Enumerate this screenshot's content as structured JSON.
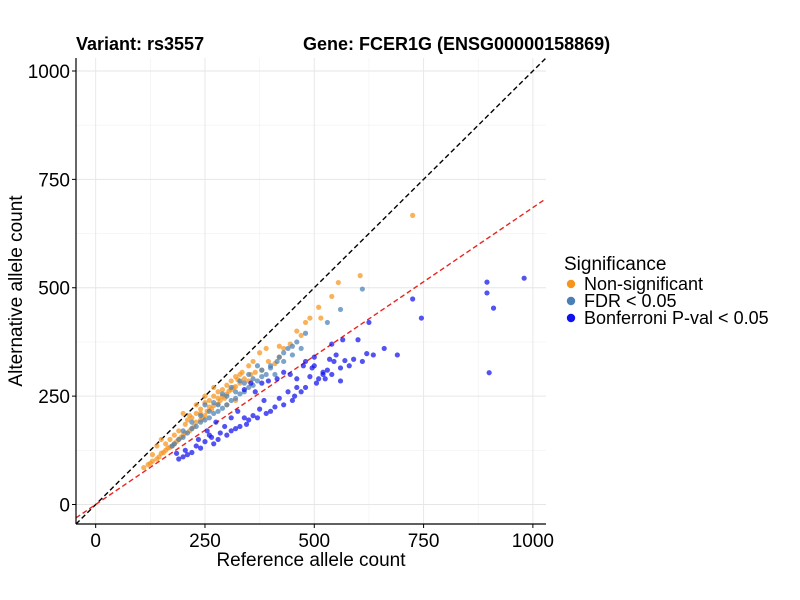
{
  "chart_data": {
    "type": "scatter",
    "title_left": "Variant: rs3557",
    "title_right": "Gene: FCER1G (ENSG00000158869)",
    "xlabel": "Reference allele count",
    "ylabel": "Alternative allele count",
    "xlim": [
      -45,
      1030
    ],
    "ylim": [
      -45,
      1030
    ],
    "xticks": [
      0,
      250,
      500,
      750,
      1000
    ],
    "yticks": [
      0,
      250,
      500,
      750,
      1000
    ],
    "grid": true,
    "legend": {
      "title": "Significance",
      "position": "right",
      "entries": [
        {
          "label": "Non-significant",
          "color": "#f7941d"
        },
        {
          "label": "FDR < 0.05",
          "color": "#4a7fb5"
        },
        {
          "label": "Bonferroni P-val < 0.05",
          "color": "#1010f0"
        }
      ]
    },
    "reference_lines": [
      {
        "name": "identity",
        "slope": 1.0,
        "intercept": 0,
        "color": "#000000",
        "dash": true
      },
      {
        "name": "expected-ratio",
        "slope": 0.685,
        "intercept": 0,
        "color": "#e8251f",
        "dash": true
      }
    ],
    "series": [
      {
        "name": "Non-significant",
        "color": "#f7941d",
        "points": [
          [
            725,
            667
          ],
          [
            605,
            528
          ],
          [
            555,
            512
          ],
          [
            510,
            455
          ],
          [
            490,
            430
          ],
          [
            460,
            400
          ],
          [
            445,
            370
          ],
          [
            430,
            360
          ],
          [
            420,
            340
          ],
          [
            410,
            325
          ],
          [
            395,
            330
          ],
          [
            380,
            310
          ],
          [
            365,
            305
          ],
          [
            355,
            300
          ],
          [
            340,
            290
          ],
          [
            330,
            280
          ],
          [
            320,
            272
          ],
          [
            310,
            265
          ],
          [
            300,
            255
          ],
          [
            295,
            245
          ],
          [
            285,
            240
          ],
          [
            280,
            232
          ],
          [
            270,
            228
          ],
          [
            265,
            220
          ],
          [
            255,
            215
          ],
          [
            250,
            205
          ],
          [
            245,
            200
          ],
          [
            240,
            195
          ],
          [
            230,
            190
          ],
          [
            225,
            180
          ],
          [
            220,
            175
          ],
          [
            215,
            170
          ],
          [
            205,
            165
          ],
          [
            200,
            160
          ],
          [
            195,
            155
          ],
          [
            190,
            150
          ],
          [
            185,
            145
          ],
          [
            180,
            140
          ],
          [
            175,
            135
          ],
          [
            170,
            132
          ],
          [
            165,
            130
          ],
          [
            160,
            125
          ],
          [
            155,
            120
          ],
          [
            150,
            118
          ],
          [
            145,
            110
          ],
          [
            140,
            105
          ],
          [
            130,
            100
          ],
          [
            125,
            95
          ],
          [
            120,
            92
          ],
          [
            110,
            85
          ],
          [
            200,
            210
          ],
          [
            210,
            195
          ],
          [
            220,
            200
          ],
          [
            230,
            210
          ],
          [
            240,
            220
          ],
          [
            250,
            235
          ],
          [
            260,
            240
          ],
          [
            270,
            250
          ],
          [
            280,
            260
          ],
          [
            290,
            265
          ],
          [
            300,
            275
          ],
          [
            310,
            285
          ],
          [
            320,
            295
          ],
          [
            335,
            305
          ],
          [
            350,
            320
          ],
          [
            360,
            330
          ],
          [
            375,
            350
          ],
          [
            390,
            360
          ],
          [
            420,
            365
          ],
          [
            470,
            390
          ],
          [
            480,
            420
          ],
          [
            515,
            430
          ],
          [
            540,
            480
          ],
          [
            270,
            270
          ],
          [
            250,
            250
          ],
          [
            300,
            230
          ],
          [
            320,
            240
          ],
          [
            350,
            285
          ],
          [
            330,
            300
          ],
          [
            190,
            170
          ],
          [
            180,
            160
          ],
          [
            170,
            150
          ],
          [
            160,
            140
          ],
          [
            150,
            150
          ],
          [
            140,
            135
          ],
          [
            130,
            115
          ],
          [
            230,
            230
          ],
          [
            240,
            210
          ],
          [
            260,
            225
          ],
          [
            280,
            245
          ],
          [
            290,
            250
          ],
          [
            305,
            262
          ],
          [
            315,
            270
          ],
          [
            325,
            288
          ],
          [
            215,
            205
          ],
          [
            205,
            185
          ]
        ]
      },
      {
        "name": "FDR < 0.05",
        "color": "#4a7fb5",
        "points": [
          [
            610,
            497
          ],
          [
            560,
            450
          ],
          [
            530,
            420
          ],
          [
            480,
            395
          ],
          [
            460,
            375
          ],
          [
            450,
            365
          ],
          [
            430,
            350
          ],
          [
            415,
            330
          ],
          [
            400,
            315
          ],
          [
            390,
            300
          ],
          [
            380,
            295
          ],
          [
            370,
            285
          ],
          [
            360,
            275
          ],
          [
            350,
            270
          ],
          [
            340,
            260
          ],
          [
            330,
            255
          ],
          [
            320,
            245
          ],
          [
            310,
            240
          ],
          [
            300,
            230
          ],
          [
            290,
            222
          ],
          [
            280,
            215
          ],
          [
            270,
            210
          ],
          [
            260,
            200
          ],
          [
            250,
            195
          ],
          [
            240,
            190
          ],
          [
            230,
            180
          ],
          [
            220,
            175
          ],
          [
            210,
            165
          ],
          [
            200,
            155
          ],
          [
            190,
            150
          ],
          [
            180,
            140
          ],
          [
            175,
            135
          ],
          [
            280,
            230
          ],
          [
            300,
            250
          ],
          [
            320,
            260
          ],
          [
            340,
            280
          ],
          [
            360,
            290
          ],
          [
            380,
            310
          ],
          [
            400,
            320
          ],
          [
            420,
            340
          ],
          [
            440,
            360
          ],
          [
            260,
            215
          ],
          [
            240,
            205
          ],
          [
            220,
            190
          ],
          [
            200,
            170
          ],
          [
            310,
            270
          ],
          [
            330,
            285
          ],
          [
            350,
            300
          ],
          [
            370,
            320
          ],
          [
            250,
            230
          ],
          [
            290,
            255
          ],
          [
            270,
            235
          ],
          [
            410,
            300
          ],
          [
            430,
            330
          ],
          [
            450,
            345
          ],
          [
            470,
            360
          ]
        ]
      },
      {
        "name": "Bonferroni P-val < 0.05",
        "color": "#1010f0",
        "points": [
          [
            980,
            522
          ],
          [
            895,
            513
          ],
          [
            895,
            488
          ],
          [
            910,
            453
          ],
          [
            900,
            304
          ],
          [
            745,
            430
          ],
          [
            725,
            474
          ],
          [
            690,
            345
          ],
          [
            660,
            360
          ],
          [
            635,
            345
          ],
          [
            620,
            348
          ],
          [
            610,
            330
          ],
          [
            600,
            380
          ],
          [
            590,
            335
          ],
          [
            580,
            320
          ],
          [
            570,
            332
          ],
          [
            560,
            315
          ],
          [
            545,
            330
          ],
          [
            540,
            300
          ],
          [
            530,
            310
          ],
          [
            525,
            290
          ],
          [
            520,
            300
          ],
          [
            510,
            290
          ],
          [
            505,
            280
          ],
          [
            495,
            315
          ],
          [
            490,
            295
          ],
          [
            480,
            270
          ],
          [
            470,
            260
          ],
          [
            460,
            270
          ],
          [
            455,
            250
          ],
          [
            450,
            240
          ],
          [
            440,
            260
          ],
          [
            430,
            230
          ],
          [
            420,
            245
          ],
          [
            410,
            225
          ],
          [
            400,
            215
          ],
          [
            390,
            210
          ],
          [
            385,
            240
          ],
          [
            375,
            220
          ],
          [
            370,
            200
          ],
          [
            360,
            205
          ],
          [
            350,
            195
          ],
          [
            345,
            185
          ],
          [
            340,
            200
          ],
          [
            330,
            180
          ],
          [
            320,
            175
          ],
          [
            310,
            170
          ],
          [
            300,
            160
          ],
          [
            295,
            180
          ],
          [
            285,
            165
          ],
          [
            280,
            150
          ],
          [
            270,
            140
          ],
          [
            265,
            155
          ],
          [
            260,
            160
          ],
          [
            250,
            145
          ],
          [
            240,
            130
          ],
          [
            235,
            150
          ],
          [
            230,
            135
          ],
          [
            220,
            120
          ],
          [
            210,
            115
          ],
          [
            205,
            125
          ],
          [
            200,
            110
          ],
          [
            190,
            105
          ],
          [
            185,
            118
          ],
          [
            340,
            265
          ],
          [
            355,
            280
          ],
          [
            365,
            260
          ],
          [
            380,
            280
          ],
          [
            395,
            285
          ],
          [
            415,
            290
          ],
          [
            430,
            305
          ],
          [
            445,
            300
          ],
          [
            460,
            290
          ],
          [
            475,
            320
          ],
          [
            500,
            320
          ],
          [
            520,
            305
          ],
          [
            550,
            345
          ],
          [
            565,
            380
          ],
          [
            625,
            420
          ],
          [
            540,
            370
          ],
          [
            500,
            340
          ],
          [
            480,
            330
          ],
          [
            310,
            200
          ],
          [
            325,
            215
          ],
          [
            275,
            190
          ],
          [
            255,
            170
          ],
          [
            560,
            285
          ],
          [
            535,
            335
          ]
        ]
      }
    ]
  }
}
